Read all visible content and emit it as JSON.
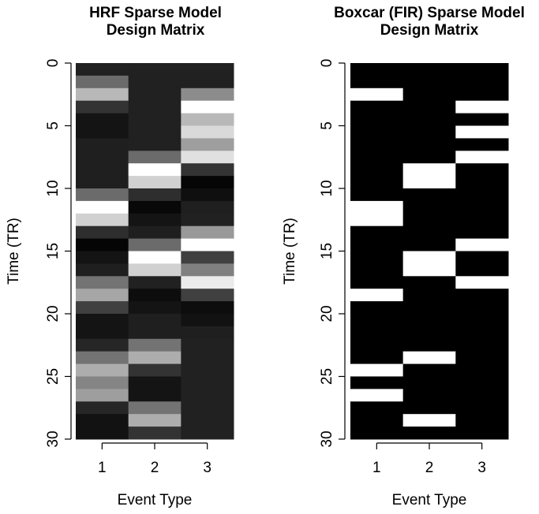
{
  "chart_data": [
    {
      "type": "heatmap",
      "title_lines": [
        "HRF Sparse Model",
        "Design Matrix"
      ],
      "xlabel": "Event Type",
      "ylabel": "Time (TR)",
      "x_ticks": [
        "1",
        "2",
        "3"
      ],
      "y_ticks": [
        "0",
        "5",
        "10",
        "15",
        "20",
        "25",
        "30"
      ],
      "ylim": [
        0,
        30
      ],
      "colormap": "grayscale (0 = black, 1 = white)",
      "x_categories": [
        "1",
        "2",
        "3"
      ],
      "values": [
        [
          0.13,
          0.13,
          0.13
        ],
        [
          0.42,
          0.13,
          0.13
        ],
        [
          0.72,
          0.13,
          0.55
        ],
        [
          0.2,
          0.13,
          1.0
        ],
        [
          0.08,
          0.13,
          0.72
        ],
        [
          0.08,
          0.13,
          0.85
        ],
        [
          0.12,
          0.13,
          0.62
        ],
        [
          0.12,
          0.42,
          0.88
        ],
        [
          0.12,
          1.0,
          0.2
        ],
        [
          0.12,
          0.82,
          0.02
        ],
        [
          0.42,
          0.18,
          0.06
        ],
        [
          1.0,
          0.03,
          0.12
        ],
        [
          0.82,
          0.08,
          0.13
        ],
        [
          0.18,
          0.12,
          0.6
        ],
        [
          0.02,
          0.42,
          1.0
        ],
        [
          0.08,
          1.0,
          0.25
        ],
        [
          0.12,
          0.82,
          0.5
        ],
        [
          0.45,
          0.13,
          0.92
        ],
        [
          0.65,
          0.05,
          0.25
        ],
        [
          0.25,
          0.08,
          0.05
        ],
        [
          0.08,
          0.12,
          0.07
        ],
        [
          0.08,
          0.12,
          0.12
        ],
        [
          0.15,
          0.45,
          0.13
        ],
        [
          0.45,
          0.68,
          0.13
        ],
        [
          0.68,
          0.2,
          0.13
        ],
        [
          0.52,
          0.08,
          0.13
        ],
        [
          0.62,
          0.08,
          0.13
        ],
        [
          0.15,
          0.45,
          0.13
        ],
        [
          0.07,
          0.68,
          0.13
        ],
        [
          0.07,
          0.2,
          0.13
        ]
      ]
    },
    {
      "type": "heatmap",
      "title_lines": [
        "Boxcar (FIR) Sparse Model",
        "Design Matrix"
      ],
      "xlabel": "Event Type",
      "ylabel": "Time (TR)",
      "x_ticks": [
        "1",
        "2",
        "3"
      ],
      "y_ticks": [
        "0",
        "5",
        "10",
        "15",
        "20",
        "25",
        "30"
      ],
      "ylim": [
        0,
        30
      ],
      "colormap": "binary (0 = black, 1 = white)",
      "x_categories": [
        "1",
        "2",
        "3"
      ],
      "values": [
        [
          0,
          0,
          0
        ],
        [
          0,
          0,
          0
        ],
        [
          1,
          0,
          0
        ],
        [
          0,
          0,
          1
        ],
        [
          0,
          0,
          0
        ],
        [
          0,
          0,
          1
        ],
        [
          0,
          0,
          0
        ],
        [
          0,
          0,
          1
        ],
        [
          0,
          1,
          0
        ],
        [
          0,
          1,
          0
        ],
        [
          0,
          0,
          0
        ],
        [
          1,
          0,
          0
        ],
        [
          1,
          0,
          0
        ],
        [
          0,
          0,
          0
        ],
        [
          0,
          0,
          1
        ],
        [
          0,
          1,
          0
        ],
        [
          0,
          1,
          0
        ],
        [
          0,
          0,
          1
        ],
        [
          1,
          0,
          0
        ],
        [
          0,
          0,
          0
        ],
        [
          0,
          0,
          0
        ],
        [
          0,
          0,
          0
        ],
        [
          0,
          0,
          0
        ],
        [
          0,
          1,
          0
        ],
        [
          1,
          0,
          0
        ],
        [
          0,
          0,
          0
        ],
        [
          1,
          0,
          0
        ],
        [
          0,
          0,
          0
        ],
        [
          0,
          1,
          0
        ],
        [
          0,
          0,
          0
        ]
      ]
    }
  ]
}
